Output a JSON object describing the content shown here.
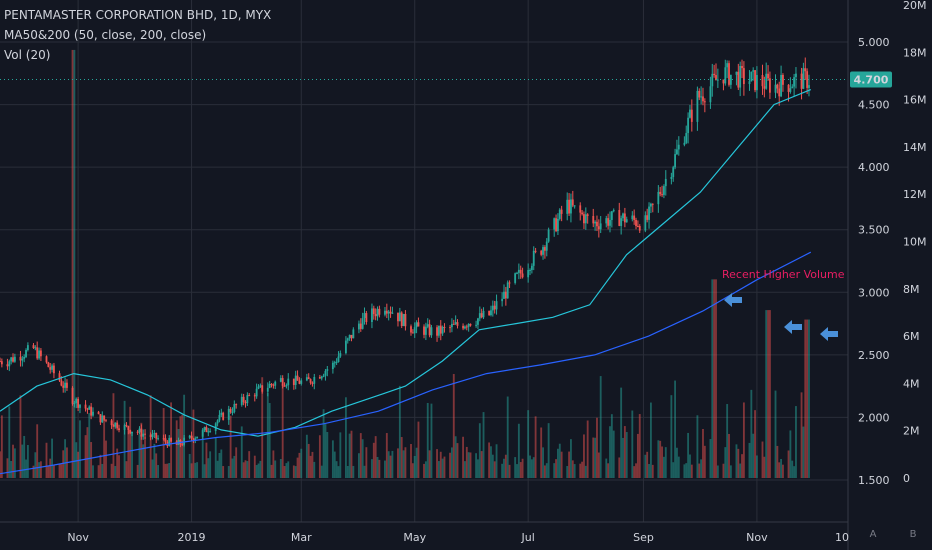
{
  "header": {
    "title": "PENTAMASTER CORPORATION BHD, 1D, MYX",
    "ma_label": "MA50&200 (50, close, 200, close)",
    "vol_label": "Vol (20)"
  },
  "annotation": {
    "text": "Recent Higher Volume",
    "color": "#e91e63"
  },
  "colors": {
    "up": "#26a69a",
    "down": "#ef5350",
    "ma50": "#26c6da",
    "ma200": "#2962ff",
    "arrow": "#4a90d9",
    "bg": "#131722",
    "grid": "#2a2e39"
  },
  "corner_buttons": [
    "A",
    "B"
  ],
  "chart_data": {
    "type": "candlestick",
    "x_tick_labels": [
      "Nov",
      "2019",
      "Mar",
      "May",
      "Jul",
      "Sep",
      "Nov",
      "10"
    ],
    "price_axis": {
      "ticks": [
        "1.500",
        "2.000",
        "2.500",
        "3.000",
        "3.500",
        "4.000",
        "4.500",
        "5.000"
      ],
      "range": [
        1.45,
        5.3
      ]
    },
    "volume_axis": {
      "ticks": [
        "0",
        "2M",
        "4M",
        "6M",
        "8M",
        "10M",
        "12M",
        "14M",
        "16M",
        "18M",
        "20M"
      ],
      "range": [
        0,
        20000000
      ]
    },
    "last_price": "4.700",
    "price_series": {
      "dates": [
        "2018-09-24",
        "2018-10-08",
        "2018-10-22",
        "2018-10-29",
        "2018-11-12",
        "2018-11-26",
        "2018-12-10",
        "2018-12-24",
        "2019-01-07",
        "2019-01-21",
        "2019-02-04",
        "2019-02-18",
        "2019-03-04",
        "2019-03-18",
        "2019-04-01",
        "2019-04-15",
        "2019-04-29",
        "2019-05-13",
        "2019-05-27",
        "2019-06-10",
        "2019-06-24",
        "2019-07-08",
        "2019-07-22",
        "2019-08-05",
        "2019-08-19",
        "2019-09-02",
        "2019-09-16",
        "2019-09-30",
        "2019-10-14",
        "2019-10-28",
        "2019-11-11",
        "2019-11-25"
      ],
      "close": [
        2.45,
        2.55,
        2.3,
        2.15,
        2.0,
        1.92,
        1.85,
        1.78,
        1.88,
        2.05,
        2.2,
        2.3,
        2.28,
        2.42,
        2.75,
        2.9,
        2.72,
        2.68,
        2.75,
        2.82,
        3.1,
        3.35,
        3.7,
        3.55,
        3.6,
        3.55,
        4.0,
        4.55,
        4.75,
        4.7,
        4.65,
        4.7
      ]
    },
    "ma50": [
      2.05,
      2.25,
      2.35,
      2.3,
      2.18,
      2.02,
      1.9,
      1.85,
      1.92,
      2.05,
      2.15,
      2.25,
      2.45,
      2.7,
      2.75,
      2.8,
      2.9,
      3.3,
      3.55,
      3.8,
      4.15,
      4.5,
      4.62
    ],
    "ma200": [
      1.55,
      1.62,
      1.7,
      1.78,
      1.84,
      1.88,
      1.95,
      2.05,
      2.22,
      2.35,
      2.42,
      2.5,
      2.65,
      2.85,
      3.1,
      3.32
    ],
    "volume_highlights": [
      {
        "date": "2018-10-29",
        "volume": 18100000
      },
      {
        "date": "2019-10-09",
        "volume": 8400000
      },
      {
        "date": "2019-11-07",
        "volume": 7100000
      },
      {
        "date": "2019-11-28",
        "volume": 6700000
      }
    ]
  }
}
